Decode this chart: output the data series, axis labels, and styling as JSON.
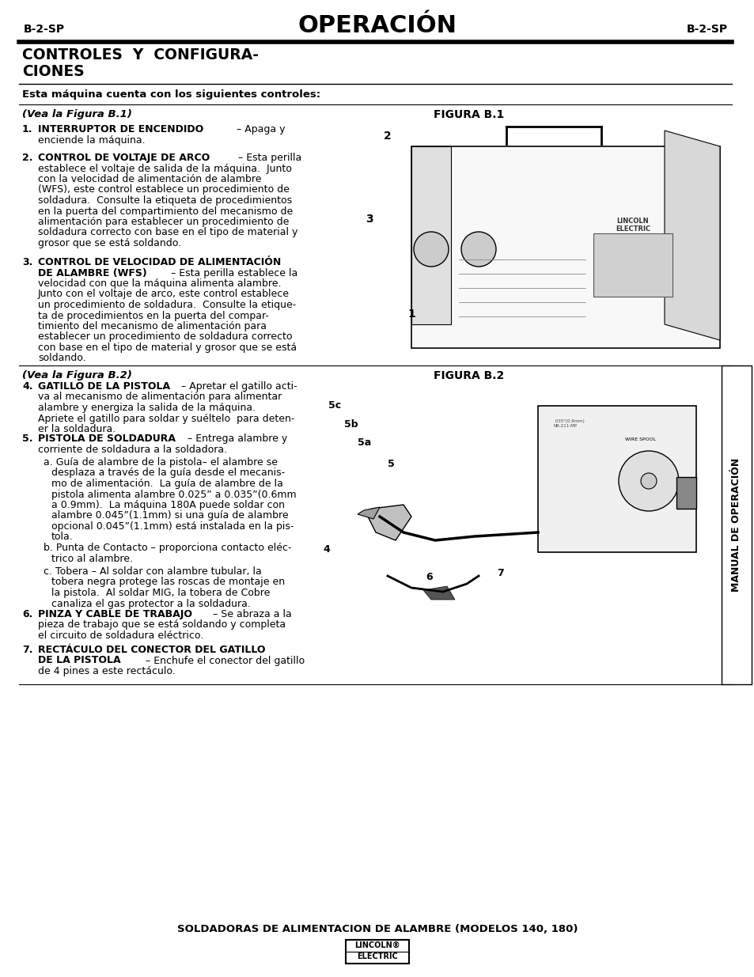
{
  "header_left": "B-2-SP",
  "header_center": "OPERACIÓN",
  "header_right": "B-2-SP",
  "section_title_line1": "CONTROLES  Y  CONFIGURA-",
  "section_title_line2": "CIONES",
  "intro_bold": "Esta máquina cuenta con los siguientes controles:",
  "fig1_label": "(Vea la Figura B.1)",
  "fig1_title": "FIGURA B.1",
  "fig2_label": "(Vea la Figura B.2)",
  "fig2_title": "FIGURA B.2",
  "footer_text": "SOLDADORAS DE ALIMENTACION DE ALAMBRE (MODELOS 140, 180)",
  "sidebar_text": "MANUAL DE OPERACIÓN",
  "bg_color": "#ffffff",
  "text_color": "#000000"
}
